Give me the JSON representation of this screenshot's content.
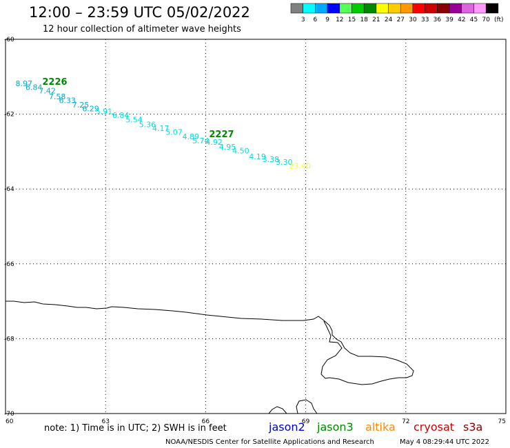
{
  "header": {
    "title": "12:00 – 23:59 UTC 05/02/2022",
    "subtitle": "12 hour collection of altimeter wave heights"
  },
  "colorbar": {
    "colors": [
      "#808080",
      "#00ffff",
      "#00aaff",
      "#0000ff",
      "#55ff55",
      "#00cc00",
      "#008800",
      "#ffff00",
      "#ffcc00",
      "#ff9900",
      "#ff0000",
      "#cc0000",
      "#880000",
      "#990099",
      "#dd66dd",
      "#ff99ff",
      "#000000"
    ],
    "labels": [
      "3",
      "6",
      "9",
      "12",
      "15",
      "18",
      "21",
      "24",
      "27",
      "30",
      "33",
      "36",
      "39",
      "42",
      "45",
      "70"
    ],
    "unit": "(ft)"
  },
  "map": {
    "lon_range": [
      60,
      75
    ],
    "lat_range": [
      -70,
      -60
    ],
    "x_tick_labels": [
      "60",
      "63",
      "66",
      "69",
      "72",
      "75"
    ],
    "y_tick_labels": [
      "-60",
      "-62",
      "-64",
      "-66",
      "-68",
      "-70"
    ],
    "grid": "dotted"
  },
  "chart_data": {
    "type": "scatter",
    "title": "12:00 – 23:59 UTC 05/02/2022",
    "subtitle": "12 hour collection of altimeter wave heights",
    "unit": "ft",
    "passes": [
      {
        "label": "2226",
        "lon": 61.0,
        "lat": -61.25
      },
      {
        "label": "2227",
        "lon": 66.0,
        "lat": -62.65
      }
    ],
    "points": [
      {
        "lon": 60.3,
        "lat": -61.25,
        "value": "8.97",
        "color": "#00aacc"
      },
      {
        "lon": 60.6,
        "lat": -61.35,
        "value": "6.84",
        "color": "#00aacc"
      },
      {
        "lon": 61.0,
        "lat": -61.45,
        "value": "7.42",
        "color": "#00aacc"
      },
      {
        "lon": 61.3,
        "lat": -61.6,
        "value": "7.58",
        "color": "#00aacc"
      },
      {
        "lon": 61.6,
        "lat": -61.7,
        "value": "6.33",
        "color": "#00aacc"
      },
      {
        "lon": 62.0,
        "lat": -61.82,
        "value": "7.25",
        "color": "#00aacc"
      },
      {
        "lon": 62.3,
        "lat": -61.92,
        "value": "6.29",
        "color": "#00aacc"
      },
      {
        "lon": 62.7,
        "lat": -62.0,
        "value": "5.91",
        "color": "#00dddd"
      },
      {
        "lon": 63.2,
        "lat": -62.1,
        "value": "6.84",
        "color": "#00dddd"
      },
      {
        "lon": 63.6,
        "lat": -62.22,
        "value": "5.54",
        "color": "#00dddd"
      },
      {
        "lon": 64.0,
        "lat": -62.35,
        "value": "5.36",
        "color": "#00dddd"
      },
      {
        "lon": 64.4,
        "lat": -62.45,
        "value": "4.17",
        "color": "#00dddd"
      },
      {
        "lon": 64.8,
        "lat": -62.55,
        "value": "5.07",
        "color": "#00dddd"
      },
      {
        "lon": 65.3,
        "lat": -62.67,
        "value": "4.89",
        "color": "#00dddd"
      },
      {
        "lon": 65.6,
        "lat": -62.78,
        "value": "5.74",
        "color": "#00dddd"
      },
      {
        "lon": 66.0,
        "lat": -62.82,
        "value": "4.92",
        "color": "#00dddd"
      },
      {
        "lon": 66.4,
        "lat": -62.95,
        "value": "4.95",
        "color": "#00dddd"
      },
      {
        "lon": 66.8,
        "lat": -63.05,
        "value": "4.50",
        "color": "#00dddd"
      },
      {
        "lon": 67.3,
        "lat": -63.2,
        "value": "4.19",
        "color": "#00dddd"
      },
      {
        "lon": 67.7,
        "lat": -63.28,
        "value": "3.38",
        "color": "#00dddd"
      },
      {
        "lon": 68.1,
        "lat": -63.35,
        "value": "3.30",
        "color": "#00dddd"
      },
      {
        "lon": 68.5,
        "lat": -63.45,
        "value": "23.40",
        "color": "#ffff00"
      }
    ]
  },
  "footer": {
    "note": "note: 1) Time is in UTC; 2) SWH is in feet",
    "satellites": [
      {
        "name": "jason2",
        "color": "#0000cc"
      },
      {
        "name": "jason3",
        "color": "#008800"
      },
      {
        "name": "altika",
        "color": "#ff8800"
      },
      {
        "name": "cryosat",
        "color": "#cc0000"
      },
      {
        "name": "s3a",
        "color": "#880000"
      }
    ],
    "credit": "NOAA/NESDIS Center for Satellite Applications and Research",
    "timestamp": "May  4 08:29:44 UTC 2022"
  }
}
